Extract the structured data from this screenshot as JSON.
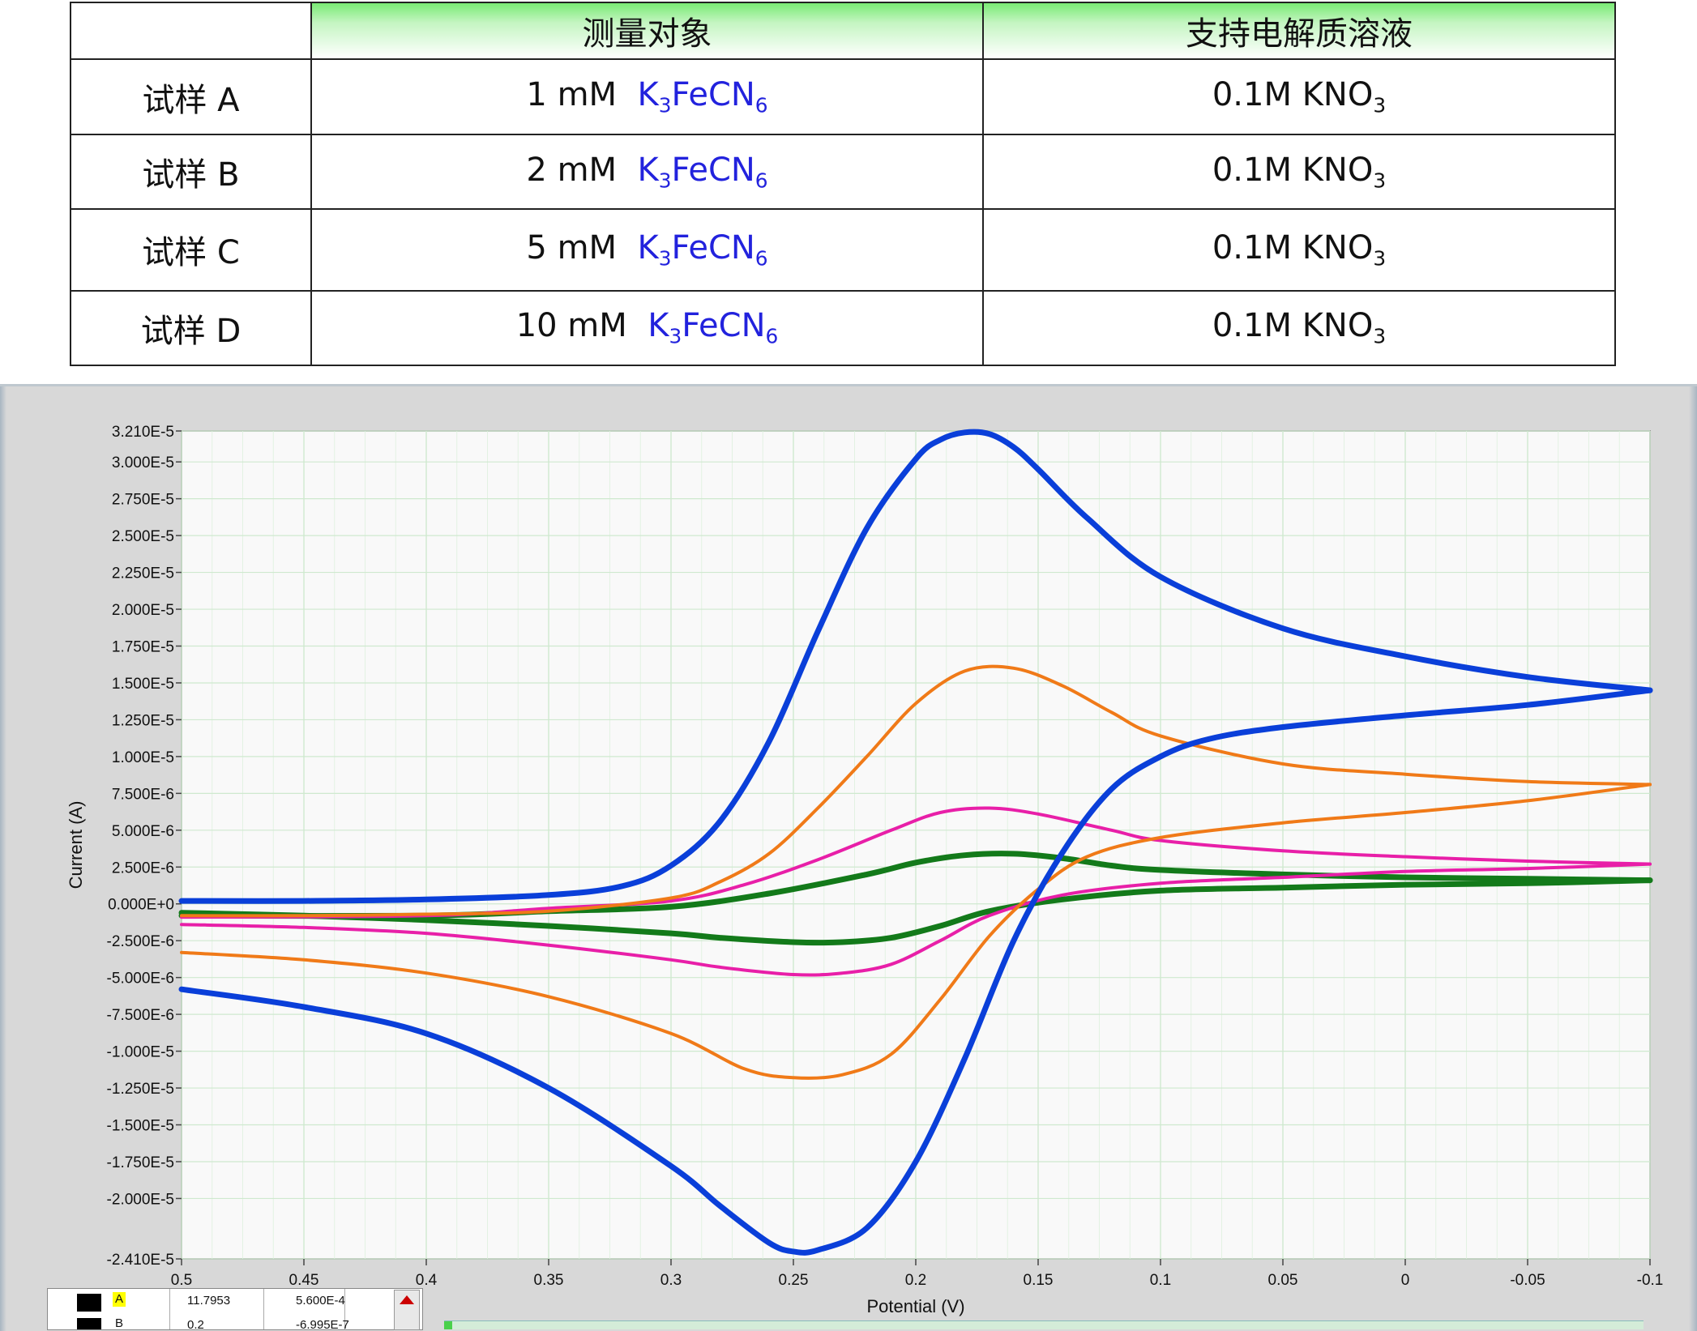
{
  "table": {
    "headers": [
      "",
      "测量对象",
      "支持电解质溶液"
    ],
    "rows": [
      {
        "sample": "试样 A",
        "conc": "1 mM",
        "analyte_main": "K",
        "analyte_sub1": "3",
        "analyte_mid": "FeCN",
        "analyte_sub2": "6",
        "electrolyte_main": "0.1M KNO",
        "electrolyte_sub": "3"
      },
      {
        "sample": "试样 B",
        "conc": "2 mM",
        "analyte_main": "K",
        "analyte_sub1": "3",
        "analyte_mid": "FeCN",
        "analyte_sub2": "6",
        "electrolyte_main": "0.1M KNO",
        "electrolyte_sub": "3"
      },
      {
        "sample": "试样 C",
        "conc": "5 mM",
        "analyte_main": "K",
        "analyte_sub1": "3",
        "analyte_mid": "FeCN",
        "analyte_sub2": "6",
        "electrolyte_main": "0.1M KNO",
        "electrolyte_sub": "3"
      },
      {
        "sample": "试样 D",
        "conc": "10 mM",
        "analyte_main": "K",
        "analyte_sub1": "3",
        "analyte_mid": "FeCN",
        "analyte_sub2": "6",
        "electrolyte_main": "0.1M KNO",
        "electrolyte_sub": "3"
      }
    ]
  },
  "chart_data": {
    "type": "line",
    "xlabel": "Potential (V)",
    "ylabel": "Current (A)",
    "xlim": [
      0.5,
      -0.1
    ],
    "ylim": [
      -2.41e-05,
      3.21e-05
    ],
    "x_reversed": true,
    "grid": true,
    "x_ticks": [
      "0.5",
      "0.45",
      "0.4",
      "0.35",
      "0.3",
      "0.25",
      "0.2",
      "0.15",
      "0.1",
      "0.05",
      "0",
      "-0.05",
      "-0.1"
    ],
    "y_ticks": [
      {
        "v": 3.21e-05,
        "label": "3.210E-5"
      },
      {
        "v": 3e-05,
        "label": "3.000E-5"
      },
      {
        "v": 2.75e-05,
        "label": "2.750E-5"
      },
      {
        "v": 2.5e-05,
        "label": "2.500E-5"
      },
      {
        "v": 2.25e-05,
        "label": "2.250E-5"
      },
      {
        "v": 2e-05,
        "label": "2.000E-5"
      },
      {
        "v": 1.75e-05,
        "label": "1.750E-5"
      },
      {
        "v": 1.5e-05,
        "label": "1.500E-5"
      },
      {
        "v": 1.25e-05,
        "label": "1.250E-5"
      },
      {
        "v": 1e-05,
        "label": "1.000E-5"
      },
      {
        "v": 7.5e-06,
        "label": "7.500E-6"
      },
      {
        "v": 5e-06,
        "label": "5.000E-6"
      },
      {
        "v": 2.5e-06,
        "label": "2.500E-6"
      },
      {
        "v": 0,
        "label": "0.000E+0"
      },
      {
        "v": -2.5e-06,
        "label": "-2.500E-6"
      },
      {
        "v": -5e-06,
        "label": "-5.000E-6"
      },
      {
        "v": -7.5e-06,
        "label": "-7.500E-6"
      },
      {
        "v": -1e-05,
        "label": "-1.000E-5"
      },
      {
        "v": -1.25e-05,
        "label": "-1.250E-5"
      },
      {
        "v": -1.5e-05,
        "label": "-1.500E-5"
      },
      {
        "v": -1.75e-05,
        "label": "-1.750E-5"
      },
      {
        "v": -2e-05,
        "label": "-2.000E-5"
      },
      {
        "v": -2.41e-05,
        "label": "-2.410E-5"
      }
    ],
    "series": [
      {
        "color": "#0a3fd9",
        "thick": true,
        "forward": {
          "x": [
            0.5,
            0.45,
            0.4,
            0.35,
            0.32,
            0.3,
            0.28,
            0.26,
            0.24,
            0.22,
            0.2,
            0.19,
            0.18,
            0.17,
            0.16,
            0.15,
            0.13,
            0.1,
            0.05,
            0.0,
            -0.05,
            -0.1
          ],
          "y": [
            2e-07,
            2e-07,
            3e-07,
            6e-07,
            1.2e-06,
            2.6e-06,
            5.6e-06,
            1.1e-05,
            1.85e-05,
            2.55e-05,
            3.02e-05,
            3.15e-05,
            3.2e-05,
            3.19e-05,
            3.1e-05,
            2.95e-05,
            2.62e-05,
            2.22e-05,
            1.87e-05,
            1.68e-05,
            1.54e-05,
            1.45e-05
          ]
        },
        "reverse": {
          "x": [
            -0.1,
            -0.05,
            0.0,
            0.05,
            0.08,
            0.1,
            0.12,
            0.14,
            0.16,
            0.18,
            0.2,
            0.22,
            0.24,
            0.25,
            0.26,
            0.28,
            0.3,
            0.35,
            0.4,
            0.45,
            0.5
          ],
          "y": [
            1.45e-05,
            1.35e-05,
            1.28e-05,
            1.2e-05,
            1.12e-05,
            1e-05,
            7.8e-06,
            3.5e-06,
            -2.5e-06,
            -1.05e-05,
            -1.75e-05,
            -2.2e-05,
            -2.35e-05,
            -2.36e-05,
            -2.3e-05,
            -2.05e-05,
            -1.78e-05,
            -1.25e-05,
            -8.8e-06,
            -7e-06,
            -5.8e-06
          ]
        }
      },
      {
        "color": "#f07a18",
        "thick": false,
        "forward": {
          "x": [
            0.5,
            0.45,
            0.4,
            0.35,
            0.3,
            0.28,
            0.26,
            0.24,
            0.22,
            0.2,
            0.18,
            0.16,
            0.14,
            0.12,
            0.1,
            0.05,
            0.0,
            -0.05,
            -0.1
          ],
          "y": [
            -8e-07,
            -8e-07,
            -7e-07,
            -5e-07,
            4e-07,
            1.5e-06,
            3.4e-06,
            6.5e-06,
            1e-05,
            1.36e-05,
            1.58e-05,
            1.6e-05,
            1.48e-05,
            1.3e-05,
            1.14e-05,
            9.5e-06,
            8.8e-06,
            8.3e-06,
            8.1e-06
          ]
        },
        "reverse": {
          "x": [
            -0.1,
            -0.05,
            0.0,
            0.05,
            0.1,
            0.13,
            0.15,
            0.17,
            0.19,
            0.21,
            0.23,
            0.25,
            0.27,
            0.3,
            0.35,
            0.4,
            0.45,
            0.5
          ],
          "y": [
            8.1e-06,
            7e-06,
            6.2e-06,
            5.5e-06,
            4.5e-06,
            3.2e-06,
            1e-06,
            -2.2e-06,
            -6.5e-06,
            -1.02e-05,
            -1.16e-05,
            -1.18e-05,
            -1.12e-05,
            -8.8e-06,
            -6.3e-06,
            -4.7e-06,
            -3.8e-06,
            -3.3e-06
          ]
        }
      },
      {
        "color": "#e81fa8",
        "thick": false,
        "forward": {
          "x": [
            0.5,
            0.4,
            0.35,
            0.3,
            0.27,
            0.24,
            0.21,
            0.19,
            0.17,
            0.15,
            0.12,
            0.1,
            0.05,
            0.0,
            -0.05,
            -0.1
          ],
          "y": [
            -9e-07,
            -8e-07,
            -3e-07,
            2e-07,
            1.3e-06,
            3e-06,
            5e-06,
            6.2e-06,
            6.5e-06,
            6.1e-06,
            5e-06,
            4.3e-06,
            3.6e-06,
            3.2e-06,
            2.9e-06,
            2.7e-06
          ]
        },
        "reverse": {
          "x": [
            -0.1,
            -0.05,
            0.0,
            0.05,
            0.1,
            0.14,
            0.17,
            0.19,
            0.21,
            0.23,
            0.25,
            0.28,
            0.3,
            0.35,
            0.4,
            0.45,
            0.5
          ],
          "y": [
            2.7e-06,
            2.4e-06,
            2.2e-06,
            1.8e-06,
            1.4e-06,
            6e-07,
            -8e-07,
            -2.5e-06,
            -4.1e-06,
            -4.7e-06,
            -4.8e-06,
            -4.3e-06,
            -3.8e-06,
            -2.8e-06,
            -2e-06,
            -1.6e-06,
            -1.4e-06
          ]
        }
      },
      {
        "color": "#137a1a",
        "thick": true,
        "forward": {
          "x": [
            0.5,
            0.4,
            0.35,
            0.3,
            0.26,
            0.22,
            0.2,
            0.18,
            0.16,
            0.14,
            0.12,
            0.1,
            0.05,
            0.0,
            -0.05,
            -0.1
          ],
          "y": [
            -8e-07,
            -8e-07,
            -5e-07,
            -2e-07,
            7e-07,
            2e-06,
            2.8e-06,
            3.3e-06,
            3.4e-06,
            3.1e-06,
            2.6e-06,
            2.3e-06,
            2e-06,
            1.8e-06,
            1.7e-06,
            1.6e-06
          ]
        },
        "reverse": {
          "x": [
            -0.1,
            -0.05,
            0.0,
            0.05,
            0.1,
            0.14,
            0.17,
            0.19,
            0.21,
            0.23,
            0.25,
            0.28,
            0.3,
            0.35,
            0.4,
            0.45,
            0.5
          ],
          "y": [
            1.6e-06,
            1.4e-06,
            1.3e-06,
            1.1e-06,
            9e-07,
            3e-07,
            -5e-07,
            -1.5e-06,
            -2.3e-06,
            -2.6e-06,
            -2.6e-06,
            -2.3e-06,
            -2e-06,
            -1.5e-06,
            -1.1e-06,
            -8e-07,
            -6e-07
          ]
        }
      }
    ]
  },
  "cursor_legend": {
    "rows": [
      {
        "name": "A",
        "x": "11.7953",
        "y": "5.600E-4",
        "selected": true
      },
      {
        "name": "B",
        "x": "0.2",
        "y": "-6.995E-7",
        "selected": false
      }
    ]
  }
}
